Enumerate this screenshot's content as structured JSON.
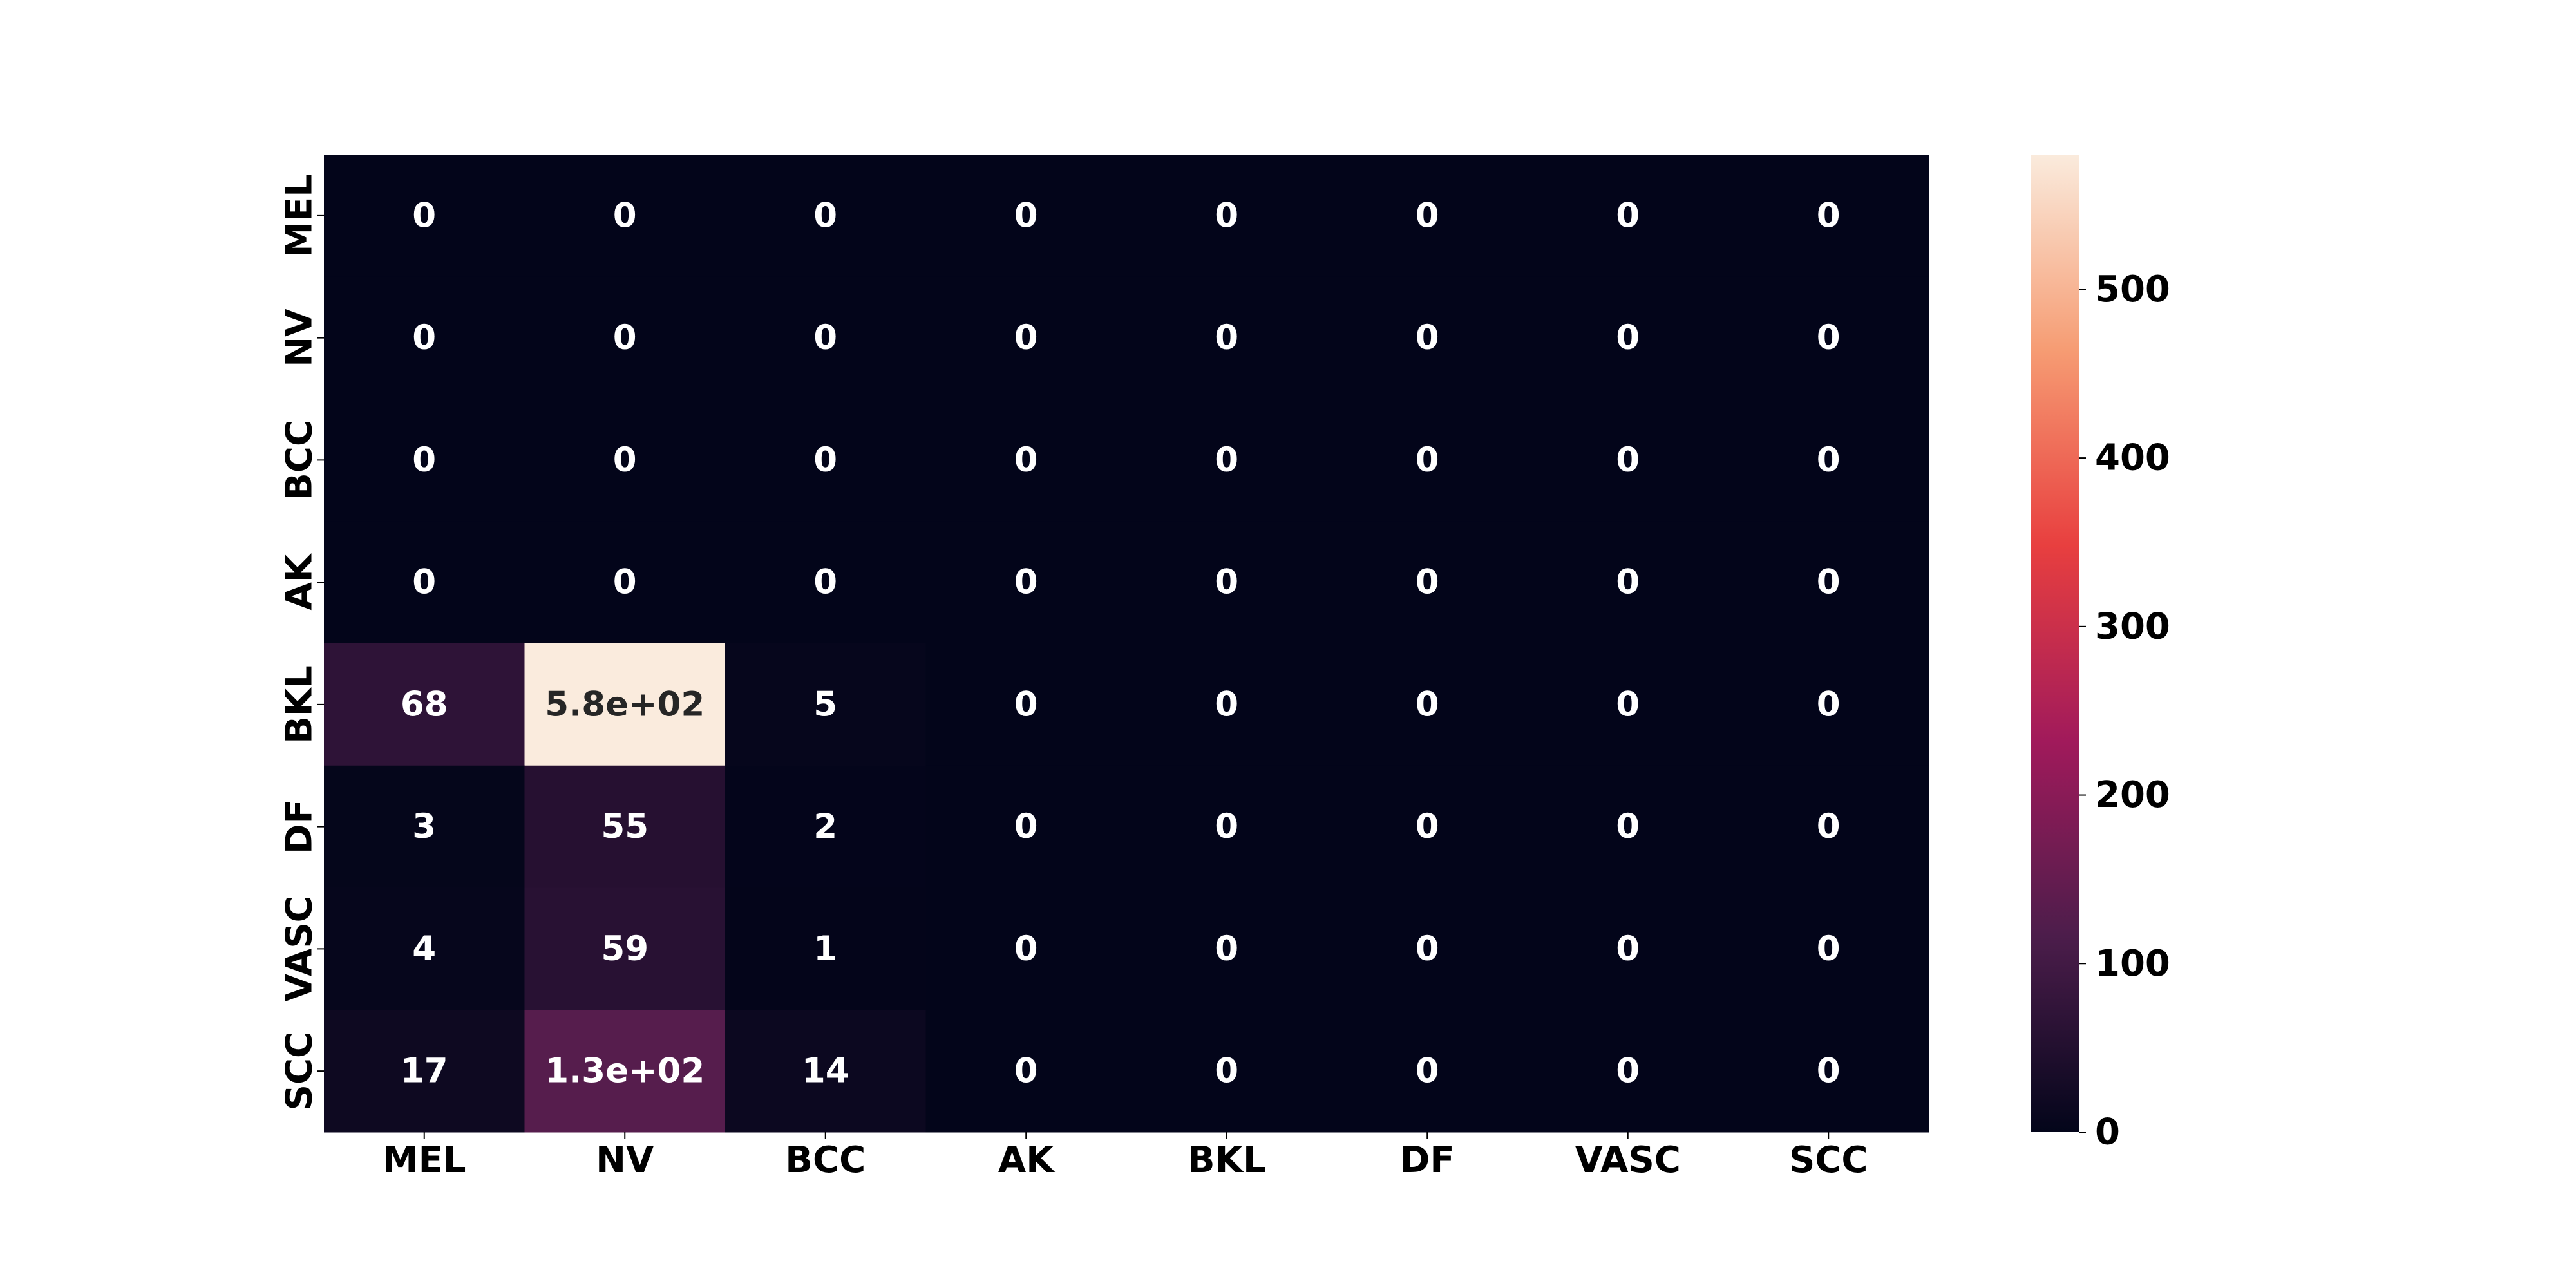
{
  "chart_data": {
    "type": "heatmap",
    "title": "",
    "xlabel": "",
    "ylabel": "",
    "x_categories": [
      "MEL",
      "NV",
      "BCC",
      "AK",
      "BKL",
      "DF",
      "VASC",
      "SCC"
    ],
    "y_categories": [
      "MEL",
      "NV",
      "BCC",
      "AK",
      "BKL",
      "DF",
      "VASC",
      "SCC"
    ],
    "values": [
      [
        0,
        0,
        0,
        0,
        0,
        0,
        0,
        0
      ],
      [
        0,
        0,
        0,
        0,
        0,
        0,
        0,
        0
      ],
      [
        0,
        0,
        0,
        0,
        0,
        0,
        0,
        0
      ],
      [
        0,
        0,
        0,
        0,
        0,
        0,
        0,
        0
      ],
      [
        68,
        580,
        5,
        0,
        0,
        0,
        0,
        0
      ],
      [
        3,
        55,
        2,
        0,
        0,
        0,
        0,
        0
      ],
      [
        4,
        59,
        1,
        0,
        0,
        0,
        0,
        0
      ],
      [
        17,
        130,
        14,
        0,
        0,
        0,
        0,
        0
      ]
    ],
    "annotations": [
      [
        "0",
        "0",
        "0",
        "0",
        "0",
        "0",
        "0",
        "0"
      ],
      [
        "0",
        "0",
        "0",
        "0",
        "0",
        "0",
        "0",
        "0"
      ],
      [
        "0",
        "0",
        "0",
        "0",
        "0",
        "0",
        "0",
        "0"
      ],
      [
        "0",
        "0",
        "0",
        "0",
        "0",
        "0",
        "0",
        "0"
      ],
      [
        "68",
        "5.8e+02",
        "5",
        "0",
        "0",
        "0",
        "0",
        "0"
      ],
      [
        "3",
        "55",
        "2",
        "0",
        "0",
        "0",
        "0",
        "0"
      ],
      [
        "4",
        "59",
        "1",
        "0",
        "0",
        "0",
        "0",
        "0"
      ],
      [
        "17",
        "1.3e+02",
        "14",
        "0",
        "0",
        "0",
        "0",
        "0"
      ]
    ],
    "colorbar": {
      "min": 0,
      "max": 580,
      "ticks": [
        0,
        100,
        200,
        300,
        400,
        500
      ],
      "colormap": "rocket",
      "colors": [
        "#03051a",
        "#4c1d4b",
        "#a11a5b",
        "#e83f3f",
        "#f69c73",
        "#faebdd"
      ]
    },
    "grid": false
  }
}
